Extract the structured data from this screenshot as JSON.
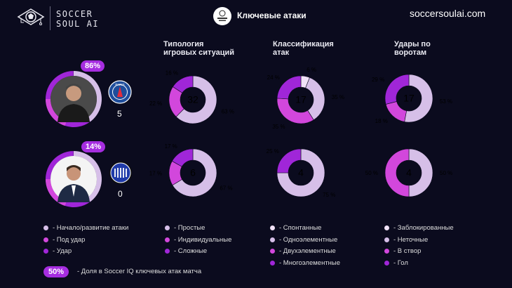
{
  "header": {
    "brand_line1": "SOCCER",
    "brand_line2": "SOUL AI",
    "title": "Ключевые атаки",
    "site": "soccersoulai.com",
    "competition_logo": "champions-league-logo"
  },
  "teams": [
    {
      "name": "PSG",
      "badge_icon": "psg-crest-icon",
      "share_pct": "86%",
      "share_value": 86,
      "score": "5",
      "coach_icon": "coach-photo"
    },
    {
      "name": "Inter",
      "badge_icon": "inter-crest-icon",
      "share_pct": "14%",
      "share_value": 14,
      "score": "0",
      "coach_icon": "coach-photo"
    }
  ],
  "colors": {
    "light": "#d6bfe8",
    "pale": "#f1e2f7",
    "magenta": "#d247dc",
    "purple": "#a026d8",
    "accent": "#a62de0",
    "background": "#0b0b1e"
  },
  "chart_data": [
    {
      "type": "pie",
      "title": "Типология игровых ситуаций",
      "team": "PSG",
      "total": "32",
      "slices": [
        {
          "label": "Простые",
          "value": 63,
          "text": "63 %"
        },
        {
          "label": "Индивидуальные",
          "value": 22,
          "text": "22 %"
        },
        {
          "label": "Сложные",
          "value": 16,
          "text": "16 %"
        }
      ]
    },
    {
      "type": "pie",
      "title": "Классификация атак",
      "team": "PSG",
      "total": "17",
      "slices": [
        {
          "label": "Спонтанные",
          "value": 6,
          "text": "6 %"
        },
        {
          "label": "Одноэлементные",
          "value": 35,
          "text": "35 %"
        },
        {
          "label": "Двухэлементные",
          "value": 35,
          "text": "35 %"
        },
        {
          "label": "Многоэлементные",
          "value": 24,
          "text": "24 %"
        }
      ]
    },
    {
      "type": "pie",
      "title": "Удары по воротам",
      "team": "PSG",
      "total": "17",
      "slices": [
        {
          "label": "Неточные",
          "value": 53,
          "text": "53 %"
        },
        {
          "label": "В створ",
          "value": 18,
          "text": "18 %"
        },
        {
          "label": "Гол",
          "value": 29,
          "text": "29 %"
        }
      ]
    },
    {
      "type": "pie",
      "title": "Типология игровых ситуаций",
      "team": "Inter",
      "total": "6",
      "slices": [
        {
          "label": "Простые",
          "value": 67,
          "text": "67 %"
        },
        {
          "label": "Индивидуальные",
          "value": 17,
          "text": "17 %"
        },
        {
          "label": "Сложные",
          "value": 17,
          "text": "17 %"
        }
      ]
    },
    {
      "type": "pie",
      "title": "Классификация атак",
      "team": "Inter",
      "total": "4",
      "slices": [
        {
          "label": "Одноэлементные",
          "value": 75,
          "text": "75 %"
        },
        {
          "label": "Многоэлементные",
          "value": 25,
          "text": "25 %"
        }
      ]
    },
    {
      "type": "pie",
      "title": "Удары по воротам",
      "team": "Inter",
      "total": "4",
      "slices": [
        {
          "label": "Неточные",
          "value": 50,
          "text": "50 %"
        },
        {
          "label": "В створ",
          "value": 50,
          "text": "50 %"
        }
      ]
    }
  ],
  "columns": [
    {
      "title_line1": "Типология",
      "title_line2": "игровых ситуаций"
    },
    {
      "title_line1": "Классификация",
      "title_line2": "атак"
    },
    {
      "title_line1": "Удары по",
      "title_line2": "воротам"
    }
  ],
  "legends": {
    "share": [
      {
        "text": "- Начало/развитие атаки",
        "color": "#d6bfe8"
      },
      {
        "text": "- Под удар",
        "color": "#d247dc"
      },
      {
        "text": "- Удар",
        "color": "#a026d8"
      }
    ],
    "typology": [
      {
        "text": "- Простые",
        "color": "#d6bfe8"
      },
      {
        "text": "- Индивидуальные",
        "color": "#d247dc"
      },
      {
        "text": "- Сложные",
        "color": "#a026d8"
      }
    ],
    "classification": [
      {
        "text": "- Спонтанные",
        "color": "#f1e2f7"
      },
      {
        "text": "- Одноэлементные",
        "color": "#d6bfe8"
      },
      {
        "text": "- Двухэлементные",
        "color": "#d247dc"
      },
      {
        "text": "- Многоэлементные",
        "color": "#a026d8"
      }
    ],
    "shots": [
      {
        "text": "- Заблокированные",
        "color": "#f1e2f7"
      },
      {
        "text": "- Неточные",
        "color": "#d6bfe8"
      },
      {
        "text": "- В створ",
        "color": "#d247dc"
      },
      {
        "text": "- Гол",
        "color": "#a026d8"
      }
    ]
  },
  "footer": {
    "badge": "50%",
    "text": "- Доля в Soccer IQ ключевых атак матча"
  }
}
